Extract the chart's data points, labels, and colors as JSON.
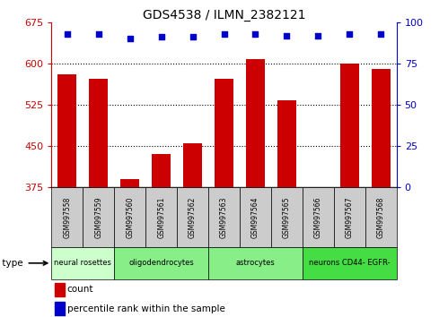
{
  "title": "GDS4538 / ILMN_2382121",
  "samples": [
    "GSM997558",
    "GSM997559",
    "GSM997560",
    "GSM997561",
    "GSM997562",
    "GSM997563",
    "GSM997564",
    "GSM997565",
    "GSM997566",
    "GSM997567",
    "GSM997568"
  ],
  "counts": [
    580,
    572,
    390,
    435,
    455,
    572,
    608,
    533,
    375,
    600,
    590
  ],
  "percentiles": [
    93,
    93,
    90,
    91,
    91,
    93,
    93,
    92,
    92,
    93,
    93
  ],
  "ylim_left": [
    375,
    675
  ],
  "ylim_right": [
    0,
    100
  ],
  "yticks_left": [
    375,
    450,
    525,
    600,
    675
  ],
  "yticks_right": [
    0,
    25,
    50,
    75,
    100
  ],
  "bar_color": "#cc0000",
  "scatter_color": "#0000cc",
  "cell_types": [
    {
      "label": "neural rosettes",
      "span": [
        0,
        2
      ],
      "color": "#ccffcc"
    },
    {
      "label": "oligodendrocytes",
      "span": [
        2,
        5
      ],
      "color": "#88ee88"
    },
    {
      "label": "astrocytes",
      "span": [
        5,
        8
      ],
      "color": "#88ee88"
    },
    {
      "label": "neurons CD44- EGFR-",
      "span": [
        8,
        11
      ],
      "color": "#44dd44"
    }
  ],
  "legend_count_color": "#cc0000",
  "legend_pct_color": "#0000cc",
  "left_axis_color": "#cc0000",
  "right_axis_color": "#0000cc",
  "sample_box_color": "#cccccc",
  "grid_color": "#000000",
  "bar_bottom": 375
}
